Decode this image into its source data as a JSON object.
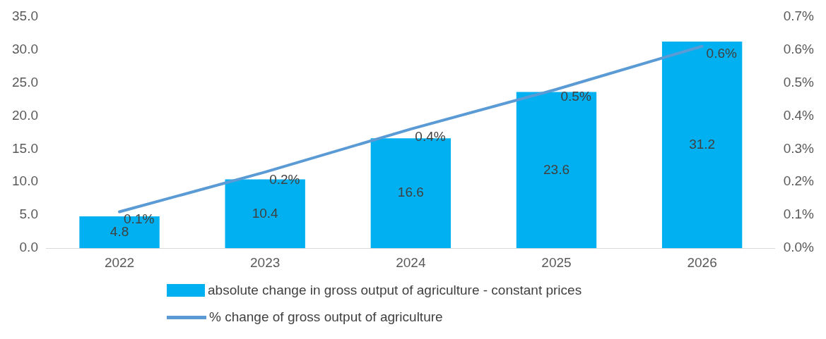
{
  "chart_data": {
    "type": "bar",
    "categories": [
      "2022",
      "2023",
      "2024",
      "2025",
      "2026"
    ],
    "series": [
      {
        "name": "absolute change in gross output of agriculture - constant prices",
        "color": "#00b0f0",
        "values": [
          4.8,
          10.4,
          16.6,
          23.6,
          31.2
        ],
        "value_labels": [
          "4.8",
          "10.4",
          "16.6",
          "23.6",
          "31.2"
        ]
      },
      {
        "name": "% change of gross output of agriculture",
        "type": "line",
        "axis": "y2",
        "color": "#5b9bd5",
        "values": [
          0.11,
          0.23,
          0.36,
          0.48,
          0.61
        ],
        "value_labels": [
          "0.1%",
          "0.2%",
          "0.4%",
          "0.5%",
          "0.6%"
        ]
      }
    ],
    "ylim": [
      0,
      35
    ],
    "yticks": [
      {
        "value": 0,
        "label": "0.0"
      },
      {
        "value": 5,
        "label": "5.0"
      },
      {
        "value": 10,
        "label": "10.0"
      },
      {
        "value": 15,
        "label": "15.0"
      },
      {
        "value": 20,
        "label": "20.0"
      },
      {
        "value": 25,
        "label": "25.0"
      },
      {
        "value": 30,
        "label": "30.0"
      },
      {
        "value": 35,
        "label": "35.0"
      }
    ],
    "y2lim": [
      0,
      0.7
    ],
    "y2ticks": [
      {
        "value": 0,
        "label": "0.0%"
      },
      {
        "value": 0.1,
        "label": "0.1%"
      },
      {
        "value": 0.2,
        "label": "0.2%"
      },
      {
        "value": 0.3,
        "label": "0.3%"
      },
      {
        "value": 0.4,
        "label": "0.4%"
      },
      {
        "value": 0.5,
        "label": "0.5%"
      },
      {
        "value": 0.6,
        "label": "0.6%"
      },
      {
        "value": 0.7,
        "label": "0.7%"
      }
    ],
    "grid": false,
    "legend": "bottom",
    "marker": "none",
    "line_style": "solid"
  }
}
